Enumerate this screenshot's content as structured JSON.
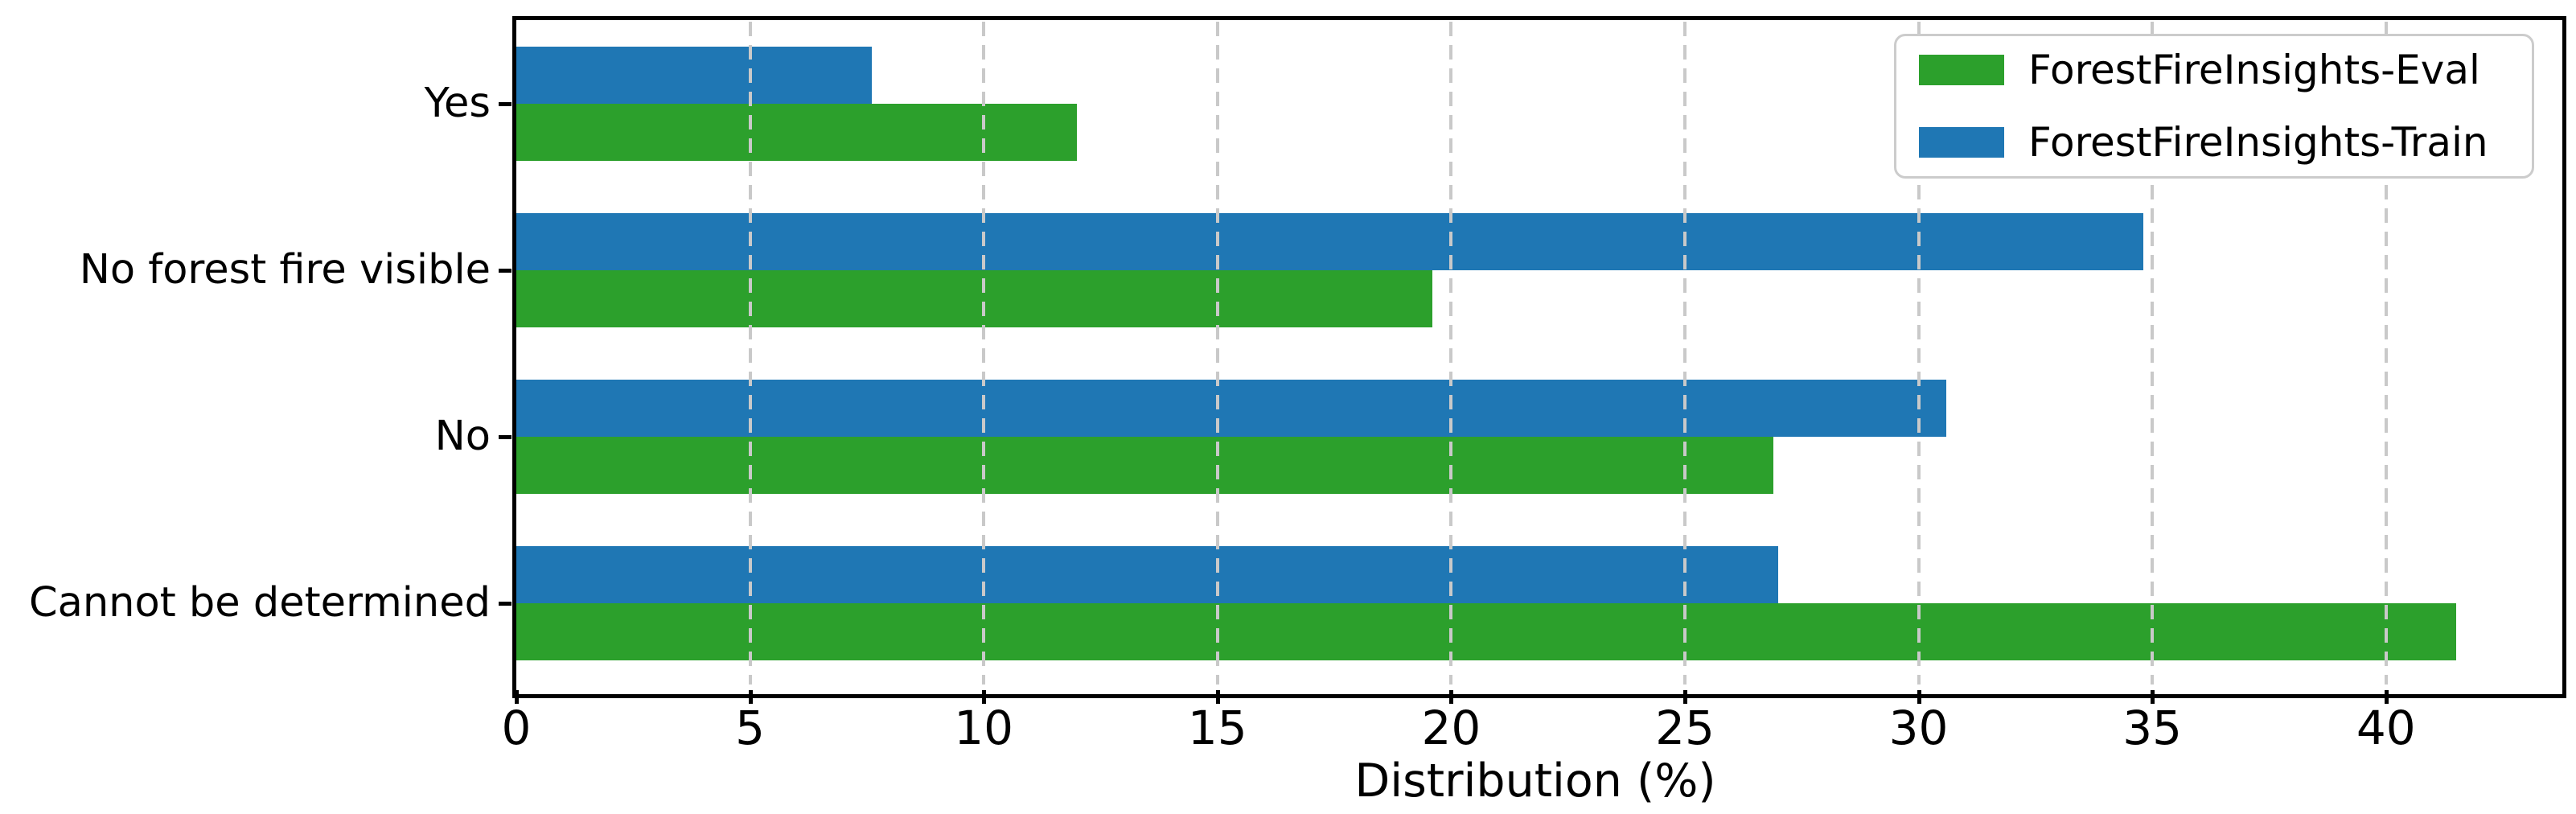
{
  "chart_data": {
    "type": "bar",
    "orientation": "horizontal",
    "title": "",
    "xlabel": "Distribution (%)",
    "ylabel": "",
    "categories": [
      "Yes",
      "No forest fire visible",
      "No",
      "Cannot be determined"
    ],
    "series": [
      {
        "name": "ForestFireInsights-Eval",
        "color": "#2ca02c",
        "values": [
          12.0,
          19.6,
          26.9,
          41.5
        ]
      },
      {
        "name": "ForestFireInsights-Train",
        "color": "#1f77b4",
        "values": [
          7.6,
          34.8,
          30.6,
          27.0
        ]
      }
    ],
    "xlim": [
      0,
      43.6
    ],
    "xticks": [
      0,
      5,
      10,
      15,
      20,
      25,
      30,
      35,
      40
    ],
    "grid": "vertical-dashed",
    "grid_color": "#c9c9c9",
    "legend_position": "upper-right",
    "legend_order": [
      "ForestFireInsights-Eval",
      "ForestFireInsights-Train"
    ],
    "bar_group_order_top_to_bottom": [
      "ForestFireInsights-Train",
      "ForestFireInsights-Eval"
    ],
    "frame_color": "#000000",
    "background_color": "#ffffff"
  }
}
